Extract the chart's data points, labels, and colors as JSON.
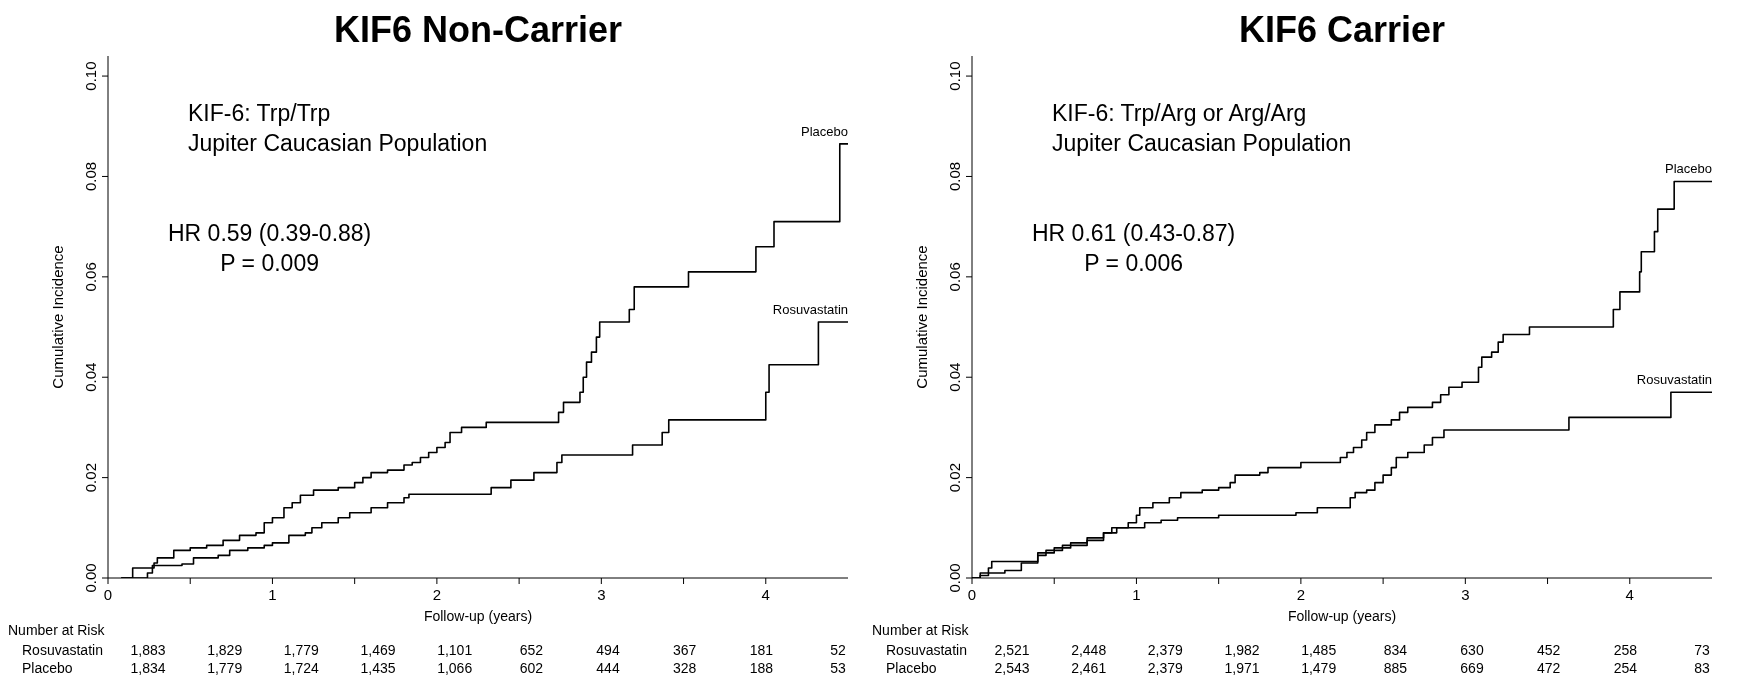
{
  "chart_data": [
    {
      "type": "step",
      "title": "KIF6 Non-Carrier",
      "xlabel": "Follow-up (years)",
      "ylabel": "Cumulative Incidence",
      "xlim": [
        0,
        4.5
      ],
      "xticks": [
        0,
        {
          "value": 0.5,
          "label": null
        },
        1,
        {
          "value": 1.5,
          "label": null
        },
        2,
        {
          "value": 2.5,
          "label": null
        },
        3,
        {
          "value": 3.5,
          "label": null
        },
        4
      ],
      "ylim": [
        0,
        0.104
      ],
      "yticks": [
        {
          "value": 0,
          "label": "0.00"
        },
        {
          "value": 0.02,
          "label": "0.02"
        },
        {
          "value": 0.04,
          "label": "0.04"
        },
        {
          "value": 0.06,
          "label": "0.06"
        },
        {
          "value": 0.08,
          "label": "0.08"
        },
        {
          "value": 0.1,
          "label": "0.10"
        }
      ],
      "annotations": [
        "KIF-6: Trp/Trp",
        "Jupiter Caucasian Population",
        "HR 0.59 (0.39-0.88)",
        "P = 0.009",
        "Number at Risk",
        "Rosuvastatin 1,883 1,829 1,779 1,469 1,101 652 494 367 181 52",
        "Placebo 1,834 1,779 1,724 1,435 1,066 602 444 328 188 53"
      ],
      "series": [
        {
          "name": "Placebo",
          "color": "#000000",
          "x": [
            0.08,
            0.15,
            0.28,
            0.3,
            0.4,
            0.5,
            0.6,
            0.7,
            0.8,
            0.9,
            0.95,
            1.0,
            1.07,
            1.12,
            1.17,
            1.25,
            1.4,
            1.5,
            1.55,
            1.6,
            1.7,
            1.8,
            1.85,
            1.9,
            1.95,
            2.0,
            2.05,
            2.08,
            2.15,
            2.3,
            2.74,
            2.77,
            2.87,
            2.89,
            2.91,
            2.94,
            2.97,
            2.99,
            3.17,
            3.2,
            3.53,
            3.94,
            4.05,
            4.45,
            4.5
          ],
          "values": [
            0,
            0.002,
            0.003,
            0.004,
            0.0055,
            0.006,
            0.0065,
            0.0075,
            0.0085,
            0.009,
            0.011,
            0.012,
            0.014,
            0.015,
            0.0165,
            0.0175,
            0.018,
            0.019,
            0.02,
            0.021,
            0.0215,
            0.0225,
            0.023,
            0.024,
            0.025,
            0.026,
            0.027,
            0.029,
            0.03,
            0.031,
            0.033,
            0.035,
            0.037,
            0.04,
            0.043,
            0.045,
            0.048,
            0.051,
            0.0535,
            0.058,
            0.061,
            0.066,
            0.071,
            0.0865,
            0.0865
          ]
        },
        {
          "name": "Rosuvastatin",
          "color": "#000000",
          "x": [
            0.08,
            0.24,
            0.27,
            0.45,
            0.52,
            0.67,
            0.74,
            0.85,
            0.95,
            1.0,
            1.1,
            1.2,
            1.24,
            1.3,
            1.4,
            1.47,
            1.6,
            1.7,
            1.8,
            1.83,
            2.33,
            2.45,
            2.59,
            2.73,
            2.76,
            3.19,
            3.37,
            3.41,
            4.0,
            4.02,
            4.32,
            4.5
          ],
          "values": [
            0,
            0.001,
            0.0025,
            0.0028,
            0.004,
            0.0045,
            0.0055,
            0.006,
            0.0065,
            0.007,
            0.0085,
            0.009,
            0.01,
            0.011,
            0.012,
            0.013,
            0.014,
            0.015,
            0.016,
            0.0167,
            0.018,
            0.0195,
            0.021,
            0.023,
            0.0245,
            0.0265,
            0.029,
            0.0315,
            0.037,
            0.0425,
            0.051,
            0.051
          ]
        }
      ]
    },
    {
      "type": "step",
      "title": "KIF6 Carrier",
      "xlabel": "Follow-up (years)",
      "ylabel": "Cumulative Incidence",
      "xlim": [
        0,
        4.5
      ],
      "xticks": [
        0,
        {
          "value": 0.5,
          "label": null
        },
        1,
        {
          "value": 1.5,
          "label": null
        },
        2,
        {
          "value": 2.5,
          "label": null
        },
        3,
        {
          "value": 3.5,
          "label": null
        },
        4
      ],
      "ylim": [
        0,
        0.104
      ],
      "yticks": [
        {
          "value": 0,
          "label": "0.00"
        },
        {
          "value": 0.02,
          "label": "0.02"
        },
        {
          "value": 0.04,
          "label": "0.04"
        },
        {
          "value": 0.06,
          "label": "0.06"
        },
        {
          "value": 0.08,
          "label": "0.08"
        },
        {
          "value": 0.1,
          "label": "0.10"
        }
      ],
      "annotations": [
        "KIF-6: Trp/Arg or Arg/Arg",
        "Jupiter Caucasian Population",
        "HR 0.61 (0.43-0.87)",
        "P = 0.006",
        "Number at Risk",
        "Rosuvastatin 2,521 2,448 2,379 1,982 1,485 834 630 452 258 73",
        "Placebo 2,543 2,461 2,379 1,971 1,479 885 669 472 254 83"
      ],
      "series": [
        {
          "name": "Placebo",
          "color": "#000000",
          "x": [
            0,
            0.05,
            0.1,
            0.2,
            0.3,
            0.4,
            0.5,
            0.55,
            0.7,
            0.8,
            0.88,
            0.95,
            1.0,
            1.02,
            1.1,
            1.2,
            1.27,
            1.4,
            1.5,
            1.57,
            1.6,
            1.75,
            1.8,
            2.0,
            2.24,
            2.28,
            2.32,
            2.37,
            2.4,
            2.45,
            2.55,
            2.6,
            2.65,
            2.8,
            2.85,
            2.9,
            2.98,
            3.08,
            3.1,
            3.16,
            3.2,
            3.23,
            3.39,
            3.9,
            3.94,
            4.06,
            4.07,
            4.15,
            4.17,
            4.27,
            4.5
          ],
          "values": [
            0,
            0.0005,
            0.001,
            0.0015,
            0.003,
            0.005,
            0.0055,
            0.0065,
            0.0075,
            0.009,
            0.01,
            0.011,
            0.0125,
            0.014,
            0.015,
            0.016,
            0.017,
            0.0175,
            0.018,
            0.019,
            0.0205,
            0.021,
            0.022,
            0.023,
            0.024,
            0.025,
            0.026,
            0.0275,
            0.029,
            0.0305,
            0.0315,
            0.033,
            0.034,
            0.035,
            0.0365,
            0.038,
            0.039,
            0.042,
            0.044,
            0.045,
            0.047,
            0.0485,
            0.05,
            0.0535,
            0.057,
            0.061,
            0.065,
            0.069,
            0.0735,
            0.079,
            0.079
          ]
        },
        {
          "name": "Rosuvastatin",
          "color": "#000000",
          "x": [
            0,
            0.05,
            0.1,
            0.12,
            0.35,
            0.4,
            0.45,
            0.5,
            0.6,
            0.7,
            0.8,
            0.85,
            1.05,
            1.15,
            1.25,
            1.5,
            1.97,
            2.1,
            2.3,
            2.33,
            2.4,
            2.45,
            2.5,
            2.55,
            2.58,
            2.65,
            2.75,
            2.8,
            2.87,
            3.63,
            4.25,
            4.5
          ],
          "values": [
            0,
            0.001,
            0.002,
            0.0033,
            0.0033,
            0.0045,
            0.0055,
            0.006,
            0.007,
            0.008,
            0.009,
            0.01,
            0.011,
            0.0115,
            0.012,
            0.0125,
            0.013,
            0.014,
            0.016,
            0.017,
            0.0175,
            0.019,
            0.0205,
            0.022,
            0.024,
            0.025,
            0.0265,
            0.028,
            0.0295,
            0.032,
            0.037,
            0.037
          ]
        }
      ]
    }
  ]
}
